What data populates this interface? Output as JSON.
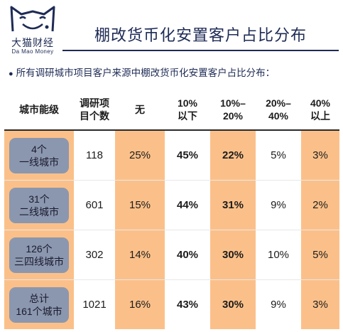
{
  "brand": {
    "logo_cn": "大猫财经",
    "logo_en": "Da Mao Money"
  },
  "title": "棚改货币化安置客户占比分布",
  "subtitle": "所有调研城市项目客户来源中棚改货币化安置客户占比分布：",
  "table": {
    "headers": [
      "城市能级",
      "调研项\n目个数",
      "无",
      "10%\n以下",
      "10%–\n20%",
      "20%–\n40%",
      "40%\n以上"
    ],
    "rows": [
      {
        "tier": "4个\n一线城市",
        "count": "118",
        "none": "25%",
        "lt10": "45%",
        "p10_20": "22%",
        "p20_40": "5%",
        "gt40": "3%"
      },
      {
        "tier": "31个\n二线城市",
        "count": "601",
        "none": "15%",
        "lt10": "44%",
        "p10_20": "31%",
        "p20_40": "9%",
        "gt40": "2%"
      },
      {
        "tier": "126个\n三四线城市",
        "count": "302",
        "none": "14%",
        "lt10": "40%",
        "p10_20": "30%",
        "p20_40": "10%",
        "gt40": "5%"
      },
      {
        "tier": "总计\n161个城市",
        "count": "1021",
        "none": "16%",
        "lt10": "43%",
        "p10_20": "30%",
        "p20_40": "9%",
        "gt40": "3%"
      }
    ]
  },
  "colors": {
    "highlight": "#fbc089",
    "pill": "#8b97af",
    "brand_navy": "#1e2b55"
  }
}
